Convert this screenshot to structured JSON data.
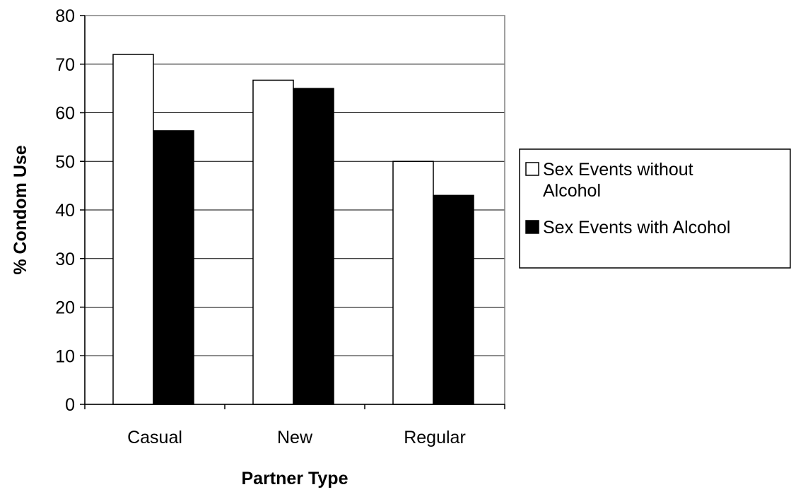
{
  "chart_data": {
    "type": "bar",
    "title": "",
    "xlabel": "Partner Type",
    "ylabel": "% Condom Use",
    "categories": [
      "Casual",
      "New",
      "Regular"
    ],
    "series": [
      {
        "name": "Sex Events without Alcohol",
        "values": [
          72,
          66.7,
          50
        ],
        "color": "#ffffff"
      },
      {
        "name": "Sex Events with Alcohol",
        "values": [
          56.3,
          65,
          43
        ],
        "color": "#000000"
      }
    ],
    "ylim": [
      0,
      80
    ],
    "yticks": [
      0,
      10,
      20,
      30,
      40,
      50,
      60,
      70,
      80
    ],
    "grid": true,
    "legend_position": "right"
  }
}
